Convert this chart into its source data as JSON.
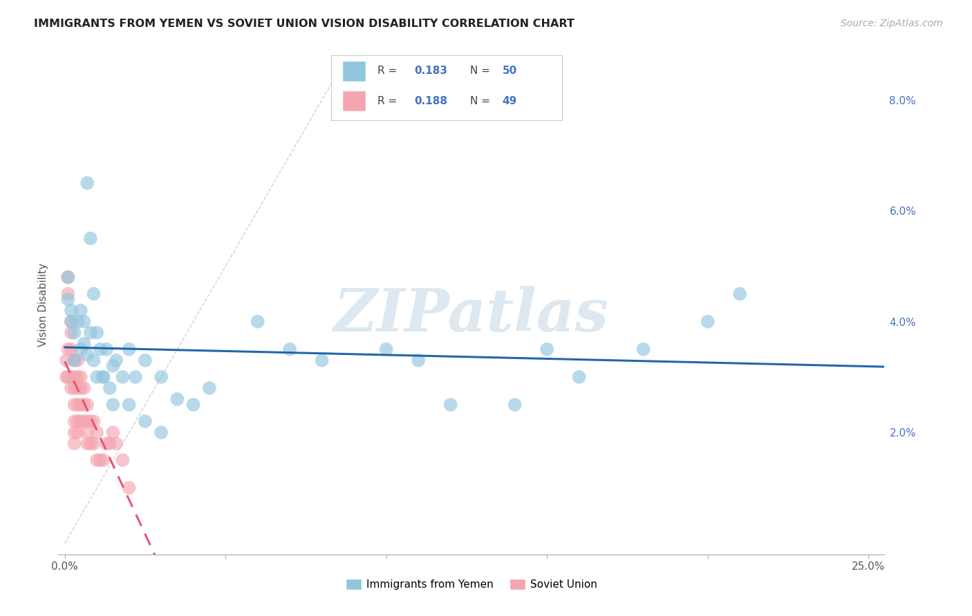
{
  "title": "IMMIGRANTS FROM YEMEN VS SOVIET UNION VISION DISABILITY CORRELATION CHART",
  "source": "Source: ZipAtlas.com",
  "ylabel": "Vision Disability",
  "x_tick_labels": [
    "0.0%",
    "",
    "",
    "",
    "",
    "25.0%"
  ],
  "x_tick_values": [
    0.0,
    0.05,
    0.1,
    0.15,
    0.2,
    0.25
  ],
  "y_tick_labels": [
    "2.0%",
    "4.0%",
    "6.0%",
    "8.0%"
  ],
  "y_tick_values": [
    0.02,
    0.04,
    0.06,
    0.08
  ],
  "xlim": [
    -0.002,
    0.255
  ],
  "ylim": [
    -0.002,
    0.088
  ],
  "yemen_color": "#92c5de",
  "soviet_color": "#f4a6b0",
  "yemen_line_color": "#2166ac",
  "soviet_line_color": "#e8547a",
  "background_color": "#ffffff",
  "grid_color": "#cccccc",
  "watermark": "ZIPatlas",
  "legend_label_yemen": "Immigrants from Yemen",
  "legend_label_soviet": "Soviet Union",
  "yemen_x": [
    0.001,
    0.001,
    0.002,
    0.002,
    0.003,
    0.003,
    0.004,
    0.005,
    0.005,
    0.006,
    0.006,
    0.007,
    0.008,
    0.009,
    0.01,
    0.011,
    0.012,
    0.013,
    0.014,
    0.015,
    0.016,
    0.018,
    0.02,
    0.022,
    0.025,
    0.03,
    0.035,
    0.04,
    0.045,
    0.06,
    0.07,
    0.08,
    0.1,
    0.11,
    0.12,
    0.14,
    0.15,
    0.16,
    0.18,
    0.2,
    0.007,
    0.008,
    0.009,
    0.01,
    0.012,
    0.015,
    0.02,
    0.025,
    0.03,
    0.21
  ],
  "yemen_y": [
    0.048,
    0.044,
    0.042,
    0.04,
    0.038,
    0.033,
    0.04,
    0.035,
    0.042,
    0.036,
    0.04,
    0.034,
    0.038,
    0.033,
    0.03,
    0.035,
    0.03,
    0.035,
    0.028,
    0.032,
    0.033,
    0.03,
    0.035,
    0.03,
    0.033,
    0.03,
    0.026,
    0.025,
    0.028,
    0.04,
    0.035,
    0.033,
    0.035,
    0.033,
    0.025,
    0.025,
    0.035,
    0.03,
    0.035,
    0.04,
    0.065,
    0.055,
    0.045,
    0.038,
    0.03,
    0.025,
    0.025,
    0.022,
    0.02,
    0.045
  ],
  "soviet_x": [
    0.0005,
    0.0005,
    0.001,
    0.001,
    0.001,
    0.001,
    0.002,
    0.002,
    0.002,
    0.002,
    0.002,
    0.003,
    0.003,
    0.003,
    0.003,
    0.003,
    0.003,
    0.003,
    0.004,
    0.004,
    0.004,
    0.004,
    0.004,
    0.004,
    0.005,
    0.005,
    0.005,
    0.005,
    0.006,
    0.006,
    0.006,
    0.007,
    0.007,
    0.007,
    0.007,
    0.008,
    0.008,
    0.009,
    0.009,
    0.01,
    0.01,
    0.011,
    0.012,
    0.013,
    0.014,
    0.015,
    0.016,
    0.018,
    0.02
  ],
  "soviet_y": [
    0.033,
    0.03,
    0.048,
    0.045,
    0.035,
    0.03,
    0.04,
    0.038,
    0.035,
    0.03,
    0.028,
    0.033,
    0.03,
    0.028,
    0.025,
    0.022,
    0.02,
    0.018,
    0.033,
    0.03,
    0.028,
    0.025,
    0.022,
    0.02,
    0.03,
    0.028,
    0.025,
    0.022,
    0.028,
    0.025,
    0.022,
    0.025,
    0.022,
    0.02,
    0.018,
    0.022,
    0.018,
    0.022,
    0.018,
    0.02,
    0.015,
    0.015,
    0.015,
    0.018,
    0.018,
    0.02,
    0.018,
    0.015,
    0.01
  ]
}
